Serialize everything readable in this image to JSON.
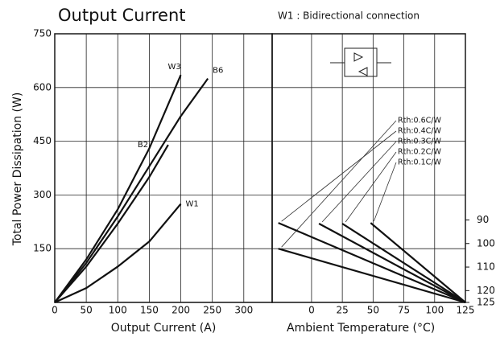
{
  "chart_data": [
    {
      "type": "line",
      "title": "Output Current",
      "subtitle": "W1 : Bidirectional connection",
      "ylabel": "Total Power Dissipation (W)",
      "xlabel": "Output Current (A)",
      "xlim": [
        0,
        345
      ],
      "xticks": [
        0,
        50,
        100,
        150,
        200,
        250,
        300
      ],
      "ylim": [
        0,
        750
      ],
      "yticks": [
        150,
        300,
        450,
        600,
        750
      ],
      "grid": true,
      "series": [
        {
          "name": "W3",
          "color": "#111111",
          "x": [
            0,
            50,
            100,
            150,
            200
          ],
          "values": [
            0,
            120,
            260,
            430,
            635
          ]
        },
        {
          "name": "B6",
          "color": "#111111",
          "x": [
            0,
            50,
            100,
            150,
            200,
            243
          ],
          "values": [
            0,
            110,
            240,
            380,
            520,
            625
          ]
        },
        {
          "name": "B2",
          "color": "#111111",
          "x": [
            0,
            50,
            100,
            150,
            180
          ],
          "values": [
            0,
            100,
            220,
            350,
            440
          ]
        },
        {
          "name": "W1",
          "color": "#111111",
          "x": [
            0,
            50,
            100,
            150,
            200
          ],
          "values": [
            0,
            40,
            100,
            170,
            275
          ]
        }
      ]
    },
    {
      "type": "line",
      "xlabel": "Ambient Temperature (°C)",
      "xlim": [
        -32,
        125
      ],
      "xticks": [
        0,
        25,
        50,
        75,
        100,
        125
      ],
      "ylim": [
        0,
        750
      ],
      "y2lim": [
        125,
        11
      ],
      "y2ticks": [
        90,
        100,
        110,
        120,
        125
      ],
      "grid": true,
      "series": [
        {
          "name": "Rth:0.6C/W",
          "color": "#111111",
          "x": [
            -27,
            125
          ],
          "values": [
            150,
            0
          ]
        },
        {
          "name": "Rth:0.4C/W",
          "color": "#111111",
          "x": [
            -27,
            125
          ],
          "values": [
            222,
            0
          ]
        },
        {
          "name": "Rth:0.3C/W",
          "color": "#111111",
          "x": [
            6,
            125
          ],
          "values": [
            220,
            0
          ]
        },
        {
          "name": "Rth:0.2C/W",
          "color": "#111111",
          "x": [
            25,
            125
          ],
          "values": [
            220,
            0
          ]
        },
        {
          "name": "Rth:0.1C/W",
          "color": "#111111",
          "x": [
            48,
            125
          ],
          "values": [
            222,
            0
          ]
        }
      ]
    }
  ]
}
